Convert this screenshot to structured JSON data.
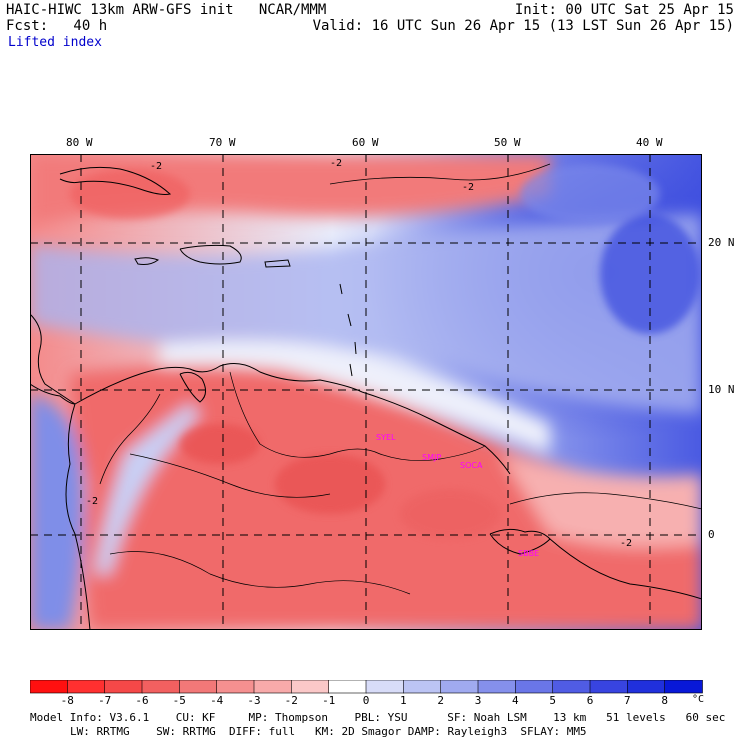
{
  "header": {
    "left1": "HAIC-HIWC 13km ARW-GFS init   NCAR/MMM",
    "left2": "Fcst:   40 h",
    "right1": "Init: 00 UTC Sat 25 Apr 15",
    "right2": "Valid: 16 UTC Sun 26 Apr 15 (13 LST Sun 26 Apr 15)",
    "field": "Lifted index"
  },
  "map": {
    "lon_labels": [
      "80 W",
      "70 W",
      "60 W",
      "50 W",
      "40 W"
    ],
    "lat_labels": [
      "20 N",
      "10 N",
      "0"
    ],
    "contour_labels": [
      "-2",
      "-2",
      "-2",
      "-2",
      "-2"
    ],
    "stations": [
      "SYEL",
      "SMJP",
      "SOCA",
      "SBBE"
    ],
    "station_color": "#ff00ff",
    "colors": {
      "warm": "#f05a5a",
      "cool": "#3a4ee0"
    }
  },
  "colorbar": {
    "unit": "°C",
    "labels": [
      "-8",
      "-7",
      "-6",
      "-5",
      "-4",
      "-3",
      "-2",
      "-1",
      "0",
      "1",
      "2",
      "3",
      "4",
      "5",
      "6",
      "7",
      "8"
    ],
    "colors": [
      "#ff1010",
      "#ff3030",
      "#f54848",
      "#f26060",
      "#f27878",
      "#f59090",
      "#f8aaaa",
      "#fbc8c8",
      "#ffffff",
      "#d8dcf8",
      "#bcc4f4",
      "#a0aaf0",
      "#8590ec",
      "#6a76e8",
      "#505ce4",
      "#3844e0",
      "#2030dc",
      "#0818d8"
    ]
  },
  "footer": {
    "line1": "Model Info: V3.6.1    CU: KF     MP: Thompson    PBL: YSU      SF: Noah LSM    13 km   51 levels   60 sec",
    "line2": "LW: RRTMG    SW: RRTMG  DIFF: full   KM: 2D Smagor DAMP: Rayleigh3  SFLAY: MM5"
  }
}
